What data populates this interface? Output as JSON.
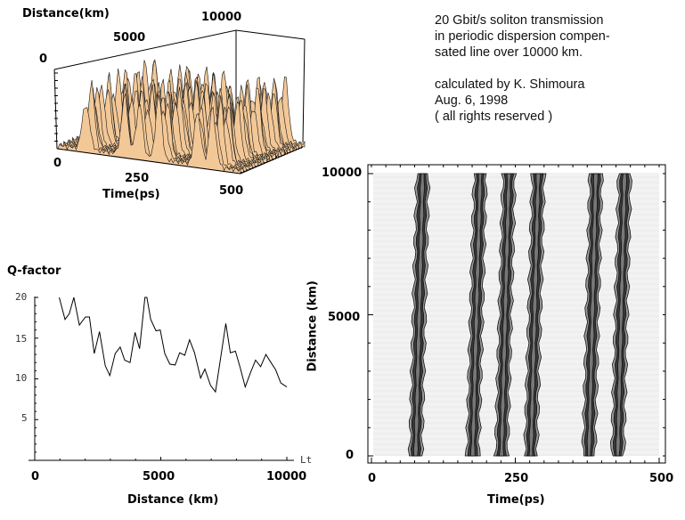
{
  "caption": {
    "lines": [
      "20 Gbit/s soliton transmission",
      "in periodic dispersion compen-",
      "sated line over 10000 km.",
      "",
      "calculated by K. Shimoura",
      "Aug. 6, 1998",
      "( all rights reserved )"
    ]
  },
  "colors": {
    "surface": "#f3c897",
    "mesh": "#1a1a1a",
    "line": "#000000",
    "track": "#3a3a3a"
  },
  "chart_data": [
    {
      "type": "surface3d",
      "title": "",
      "xlabel": "Time(ps)",
      "ylabel": "Distance(km)",
      "x_ticks": [
        "0",
        "250",
        "500"
      ],
      "y_ticks": [
        "0",
        "5000",
        "10000"
      ],
      "xlim": [
        0,
        500
      ],
      "ylim": [
        0,
        10000
      ],
      "pulse_times_ps": [
        77,
        176,
        226,
        277,
        378,
        428
      ]
    },
    {
      "type": "line",
      "title": "Q-factor",
      "xlabel": "Distance (km)",
      "ylabel": "Q-factor",
      "x_axis_end_label": "Lt",
      "xlim": [
        0,
        10000
      ],
      "ylim": [
        0,
        20
      ],
      "x_ticks": [
        "0",
        "5000",
        "10000"
      ],
      "y_ticks": [
        "5",
        "10",
        "15",
        "20"
      ],
      "x": [
        970,
        1200,
        1370,
        1550,
        1770,
        2010,
        2170,
        2360,
        2570,
        2800,
        2980,
        3190,
        3390,
        3570,
        3780,
        3980,
        4160,
        4370,
        4450,
        4600,
        4810,
        4980,
        5160,
        5360,
        5570,
        5750,
        5950,
        6140,
        6340,
        6580,
        6750,
        6970,
        7170,
        7370,
        7580,
        7760,
        7960,
        8150,
        8350,
        8550,
        8760,
        8960,
        9170,
        9370,
        9560,
        9760,
        10000
      ],
      "y": [
        20,
        17.3,
        18.0,
        20,
        16.6,
        17.6,
        17.6,
        13.1,
        15.8,
        11.6,
        10.4,
        13.1,
        13.9,
        12.3,
        12.0,
        15.7,
        13.7,
        20,
        20,
        17.3,
        15.9,
        16.0,
        13.1,
        11.8,
        11.7,
        13.2,
        12.9,
        14.8,
        13.2,
        10.1,
        11.2,
        9.2,
        8.4,
        12.5,
        16.8,
        13.2,
        13.4,
        11.4,
        9.0,
        10.7,
        12.3,
        11.5,
        13.0,
        12.0,
        11.1,
        9.5,
        9.0
      ]
    },
    {
      "type": "contour",
      "xlabel": "Time(ps)",
      "ylabel": "Distance (km)",
      "xlim": [
        0,
        500
      ],
      "ylim": [
        0,
        10000
      ],
      "x_ticks": [
        "0",
        "250",
        "500"
      ],
      "y_ticks": [
        "0",
        "5000",
        "10000"
      ],
      "tracks": [
        {
          "start_ps": 77,
          "end_ps": 89
        },
        {
          "start_ps": 176,
          "end_ps": 189
        },
        {
          "start_ps": 226,
          "end_ps": 239
        },
        {
          "start_ps": 277,
          "end_ps": 290
        },
        {
          "start_ps": 378,
          "end_ps": 390
        },
        {
          "start_ps": 428,
          "end_ps": 440
        }
      ]
    }
  ]
}
